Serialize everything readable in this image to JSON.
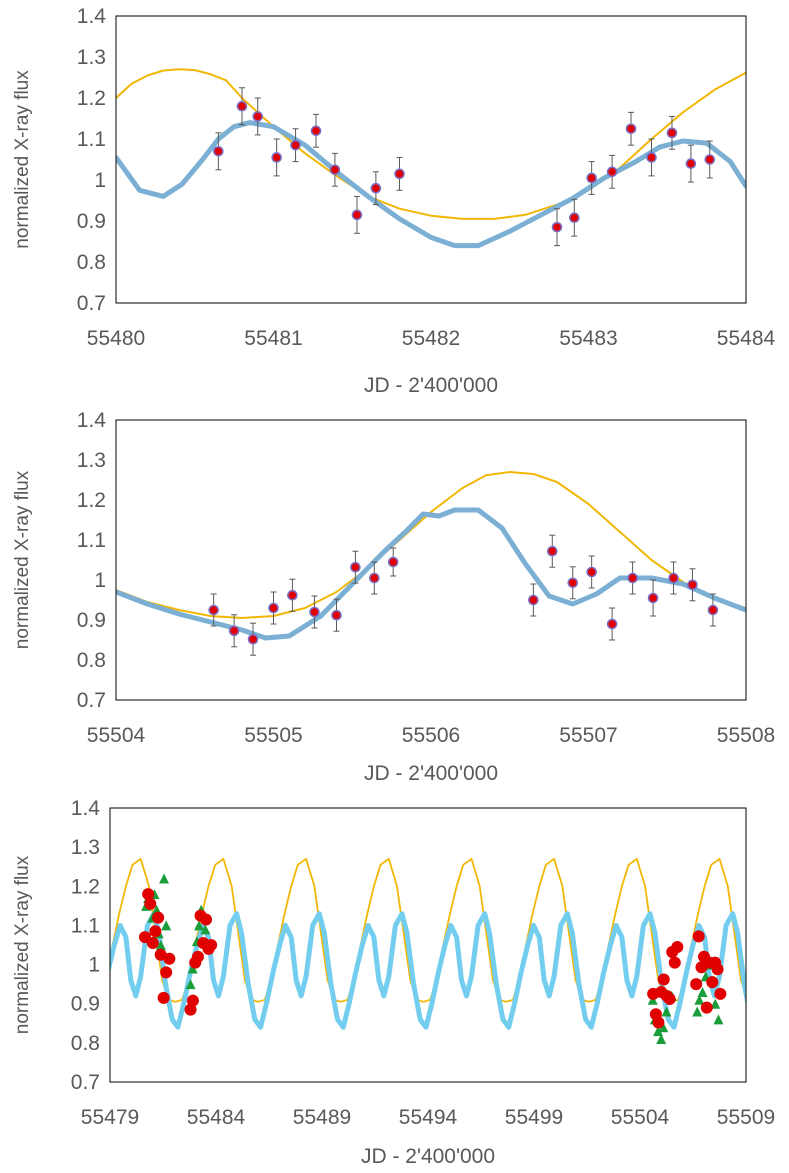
{
  "chart_data": [
    {
      "type": "scatter",
      "title": "",
      "xlabel": "JD - 2'400'000",
      "ylabel": "normalized X-ray flux",
      "xlim": [
        55480,
        55484
      ],
      "ylim": [
        0.7,
        1.4
      ],
      "xticks": [
        55480,
        55481,
        55482,
        55483,
        55484
      ],
      "yticks": [
        0.7,
        0.8,
        0.9,
        1,
        1.1,
        1.2,
        1.3,
        1.4
      ],
      "ytick_labels": [
        "0.7",
        "0.8",
        "0.9",
        "1",
        "1.1",
        "1.2",
        "1.3",
        "1.4"
      ],
      "grid": false,
      "legend": "none",
      "series": [
        {
          "kind": "line",
          "color": "#f2b705",
          "x": [
            55480,
            55480.1,
            55480.2,
            55480.3,
            55480.4,
            55480.5,
            55480.6,
            55480.7,
            55480.8,
            55481,
            55481.2,
            55481.4,
            55481.6,
            55481.8,
            55482,
            55482.2,
            55482.4,
            55482.6,
            55482.8,
            55483,
            55483.2,
            55483.4,
            55483.6,
            55483.8,
            55484
          ],
          "y": [
            1.2,
            1.235,
            1.255,
            1.267,
            1.27,
            1.268,
            1.258,
            1.243,
            1.2,
            1.13,
            1.065,
            1.01,
            0.96,
            0.93,
            0.913,
            0.905,
            0.905,
            0.915,
            0.94,
            0.975,
            1.03,
            1.1,
            1.165,
            1.22,
            1.262
          ]
        },
        {
          "kind": "line",
          "color": "#7bafd4",
          "x": [
            55480,
            55480.15,
            55480.3,
            55480.42,
            55480.55,
            55480.65,
            55480.75,
            55480.85,
            55481,
            55481.2,
            55481.4,
            55481.6,
            55481.8,
            55482,
            55482.15,
            55482.3,
            55482.5,
            55482.7,
            55482.9,
            55483.1,
            55483.3,
            55483.45,
            55483.6,
            55483.75,
            55483.9,
            55484
          ],
          "y": [
            1.055,
            0.975,
            0.96,
            0.99,
            1.05,
            1.1,
            1.13,
            1.14,
            1.13,
            1.085,
            1.02,
            0.96,
            0.905,
            0.86,
            0.84,
            0.84,
            0.875,
            0.915,
            0.955,
            1.005,
            1.045,
            1.08,
            1.095,
            1.09,
            1.045,
            0.985
          ]
        },
        {
          "kind": "points",
          "color": "#e00000",
          "edge": "#7b6cc4",
          "x": [
            55480.65,
            55480.8,
            55480.9,
            55481.02,
            55481.14,
            55481.27,
            55481.39,
            55481.53,
            55481.65,
            55481.8,
            55482.8,
            55482.91,
            55483.02,
            55483.15,
            55483.27,
            55483.4,
            55483.53,
            55483.65,
            55483.77
          ],
          "y": [
            1.07,
            1.18,
            1.155,
            1.055,
            1.085,
            1.12,
            1.025,
            0.915,
            0.98,
            1.015,
            0.885,
            0.908,
            1.005,
            1.02,
            1.125,
            1.055,
            1.115,
            1.04,
            1.05
          ],
          "err": [
            0.045,
            0.045,
            0.045,
            0.045,
            0.04,
            0.04,
            0.04,
            0.045,
            0.04,
            0.04,
            0.045,
            0.045,
            0.04,
            0.04,
            0.04,
            0.045,
            0.04,
            0.045,
            0.045
          ]
        }
      ]
    },
    {
      "type": "scatter",
      "title": "",
      "xlabel": "JD - 2'400'000",
      "ylabel": "normalized X-ray flux",
      "xlim": [
        55504,
        55508
      ],
      "ylim": [
        0.7,
        1.4
      ],
      "xticks": [
        55504,
        55505,
        55506,
        55507,
        55508
      ],
      "yticks": [
        0.7,
        0.8,
        0.9,
        1,
        1.1,
        1.2,
        1.3,
        1.4
      ],
      "ytick_labels": [
        "0.7",
        "0.8",
        "0.9",
        "1",
        "1.1",
        "1.2",
        "1.3",
        "1.4"
      ],
      "grid": false,
      "legend": "none",
      "series": [
        {
          "kind": "line",
          "color": "#f2b705",
          "x": [
            55504,
            55504.2,
            55504.4,
            55504.6,
            55504.8,
            55505,
            55505.2,
            55505.4,
            55505.6,
            55505.8,
            55506,
            55506.2,
            55506.35,
            55506.5,
            55506.65,
            55506.8,
            55507,
            55507.2,
            55507.4,
            55507.6,
            55507.8,
            55508
          ],
          "y": [
            0.975,
            0.945,
            0.925,
            0.91,
            0.905,
            0.91,
            0.93,
            0.97,
            1.03,
            1.1,
            1.17,
            1.23,
            1.262,
            1.27,
            1.265,
            1.245,
            1.19,
            1.12,
            1.05,
            0.995,
            0.955,
            0.93
          ]
        },
        {
          "kind": "line",
          "color": "#7bafd4",
          "x": [
            55504,
            55504.2,
            55504.4,
            55504.6,
            55504.8,
            55504.95,
            55505.1,
            55505.3,
            55505.5,
            55505.7,
            55505.85,
            55505.95,
            55506.05,
            55506.15,
            55506.3,
            55506.45,
            55506.6,
            55506.75,
            55506.9,
            55507.05,
            55507.2,
            55507.4,
            55507.6,
            55507.8,
            55508
          ],
          "y": [
            0.97,
            0.94,
            0.915,
            0.895,
            0.875,
            0.855,
            0.86,
            0.91,
            0.99,
            1.07,
            1.125,
            1.165,
            1.16,
            1.175,
            1.175,
            1.13,
            1.04,
            0.96,
            0.94,
            0.965,
            1.005,
            1.005,
            0.99,
            0.955,
            0.925
          ]
        },
        {
          "kind": "points",
          "color": "#e00000",
          "edge": "#7b6cc4",
          "x": [
            55504.62,
            55504.75,
            55504.87,
            55505,
            55505.12,
            55505.26,
            55505.4,
            55505.52,
            55505.64,
            55505.76,
            55506.65,
            55506.77,
            55506.9,
            55507.02,
            55507.15,
            55507.28,
            55507.41,
            55507.54,
            55507.66,
            55507.79
          ],
          "y": [
            0.925,
            0.873,
            0.852,
            0.93,
            0.962,
            0.92,
            0.912,
            1.032,
            1.005,
            1.045,
            0.95,
            1.072,
            0.993,
            1.02,
            0.89,
            1.005,
            0.955,
            1.005,
            0.988,
            0.925
          ],
          "err": [
            0.04,
            0.04,
            0.04,
            0.04,
            0.04,
            0.04,
            0.04,
            0.04,
            0.04,
            0.035,
            0.04,
            0.04,
            0.04,
            0.04,
            0.04,
            0.04,
            0.045,
            0.04,
            0.04,
            0.04
          ]
        }
      ]
    },
    {
      "type": "scatter",
      "title": "",
      "xlabel": "JD - 2'400'000",
      "ylabel": "normalized X-ray flux",
      "xlim": [
        55479,
        55509
      ],
      "ylim": [
        0.7,
        1.4
      ],
      "xticks": [
        55479,
        55484,
        55489,
        55494,
        55499,
        55504,
        55509
      ],
      "yticks": [
        0.7,
        0.8,
        0.9,
        1,
        1.1,
        1.2,
        1.3,
        1.4
      ],
      "ytick_labels": [
        "0.7",
        "0.8",
        "0.9",
        "1",
        "1.1",
        "1.2",
        "1.3",
        "1.4"
      ],
      "grid": false,
      "legend": "none",
      "model_period": 3.9,
      "model_phase0": 55480.45,
      "series": [
        {
          "kind": "periodic-line",
          "color": "#f2b705",
          "width": 1.8,
          "phase": [
            0,
            0.1,
            0.18,
            0.26,
            0.34,
            0.42,
            0.5,
            0.58,
            0.66,
            0.74,
            0.82,
            0.9,
            1
          ],
          "y": [
            1.27,
            1.2,
            1.08,
            0.96,
            0.91,
            0.905,
            0.91,
            0.96,
            1.05,
            1.13,
            1.2,
            1.255,
            1.27
          ]
        },
        {
          "kind": "periodic-line",
          "color": "#73cdee",
          "width": 5,
          "phase": [
            0,
            0.08,
            0.16,
            0.22,
            0.3,
            0.38,
            0.45,
            0.52,
            0.6,
            0.68,
            0.75,
            0.82,
            0.88,
            0.94,
            1
          ],
          "y": [
            0.97,
            1.1,
            1.13,
            1.08,
            0.95,
            0.86,
            0.84,
            0.9,
            0.98,
            1.05,
            1.1,
            1.07,
            0.96,
            0.92,
            0.97
          ]
        },
        {
          "kind": "markers",
          "marker": "triangle",
          "color": "#1a9e3a",
          "x": [
            55480.7,
            55480.8,
            55480.9,
            55481.0,
            55481.1,
            55481.2,
            55481.3,
            55481.4,
            55481.55,
            55481.65,
            55482.8,
            55482.9,
            55483.0,
            55483.1,
            55483.2,
            55483.3,
            55483.4,
            55483.5,
            55504.6,
            55504.7,
            55504.85,
            55505.0,
            55505.1,
            55505.25,
            55505.4,
            55505.5,
            55506.7,
            55506.8,
            55506.95,
            55507.1,
            55507.25,
            55507.4,
            55507.55,
            55507.7
          ],
          "y": [
            1.15,
            1.17,
            1.16,
            1.12,
            1.18,
            1.14,
            1.08,
            1.05,
            1.22,
            1.1,
            0.95,
            0.99,
            1.02,
            1.06,
            1.1,
            1.14,
            1.13,
            1.09,
            0.91,
            0.86,
            0.83,
            0.81,
            0.84,
            0.88,
            0.92,
            0.92,
            0.88,
            0.91,
            0.93,
            0.97,
            1.0,
            0.96,
            0.9,
            0.86
          ]
        },
        {
          "kind": "markers",
          "marker": "circle",
          "color": "#e00000",
          "x": [
            55480.65,
            55480.8,
            55480.9,
            55481.02,
            55481.14,
            55481.27,
            55481.39,
            55481.53,
            55481.65,
            55481.8,
            55482.8,
            55482.91,
            55483.02,
            55483.15,
            55483.27,
            55483.4,
            55483.53,
            55483.65,
            55483.77,
            55504.62,
            55504.75,
            55504.87,
            55505.0,
            55505.12,
            55505.26,
            55505.4,
            55505.52,
            55505.64,
            55505.76,
            55506.65,
            55506.77,
            55506.9,
            55507.02,
            55507.15,
            55507.28,
            55507.41,
            55507.54,
            55507.66,
            55507.79
          ],
          "y": [
            1.07,
            1.18,
            1.155,
            1.055,
            1.085,
            1.12,
            1.025,
            0.915,
            0.98,
            1.015,
            0.885,
            0.908,
            1.005,
            1.02,
            1.125,
            1.055,
            1.115,
            1.04,
            1.05,
            0.925,
            0.873,
            0.852,
            0.93,
            0.962,
            0.92,
            0.912,
            1.032,
            1.005,
            1.045,
            0.95,
            1.072,
            0.993,
            1.02,
            0.89,
            1.005,
            0.955,
            1.005,
            0.988,
            0.925
          ]
        }
      ]
    }
  ]
}
